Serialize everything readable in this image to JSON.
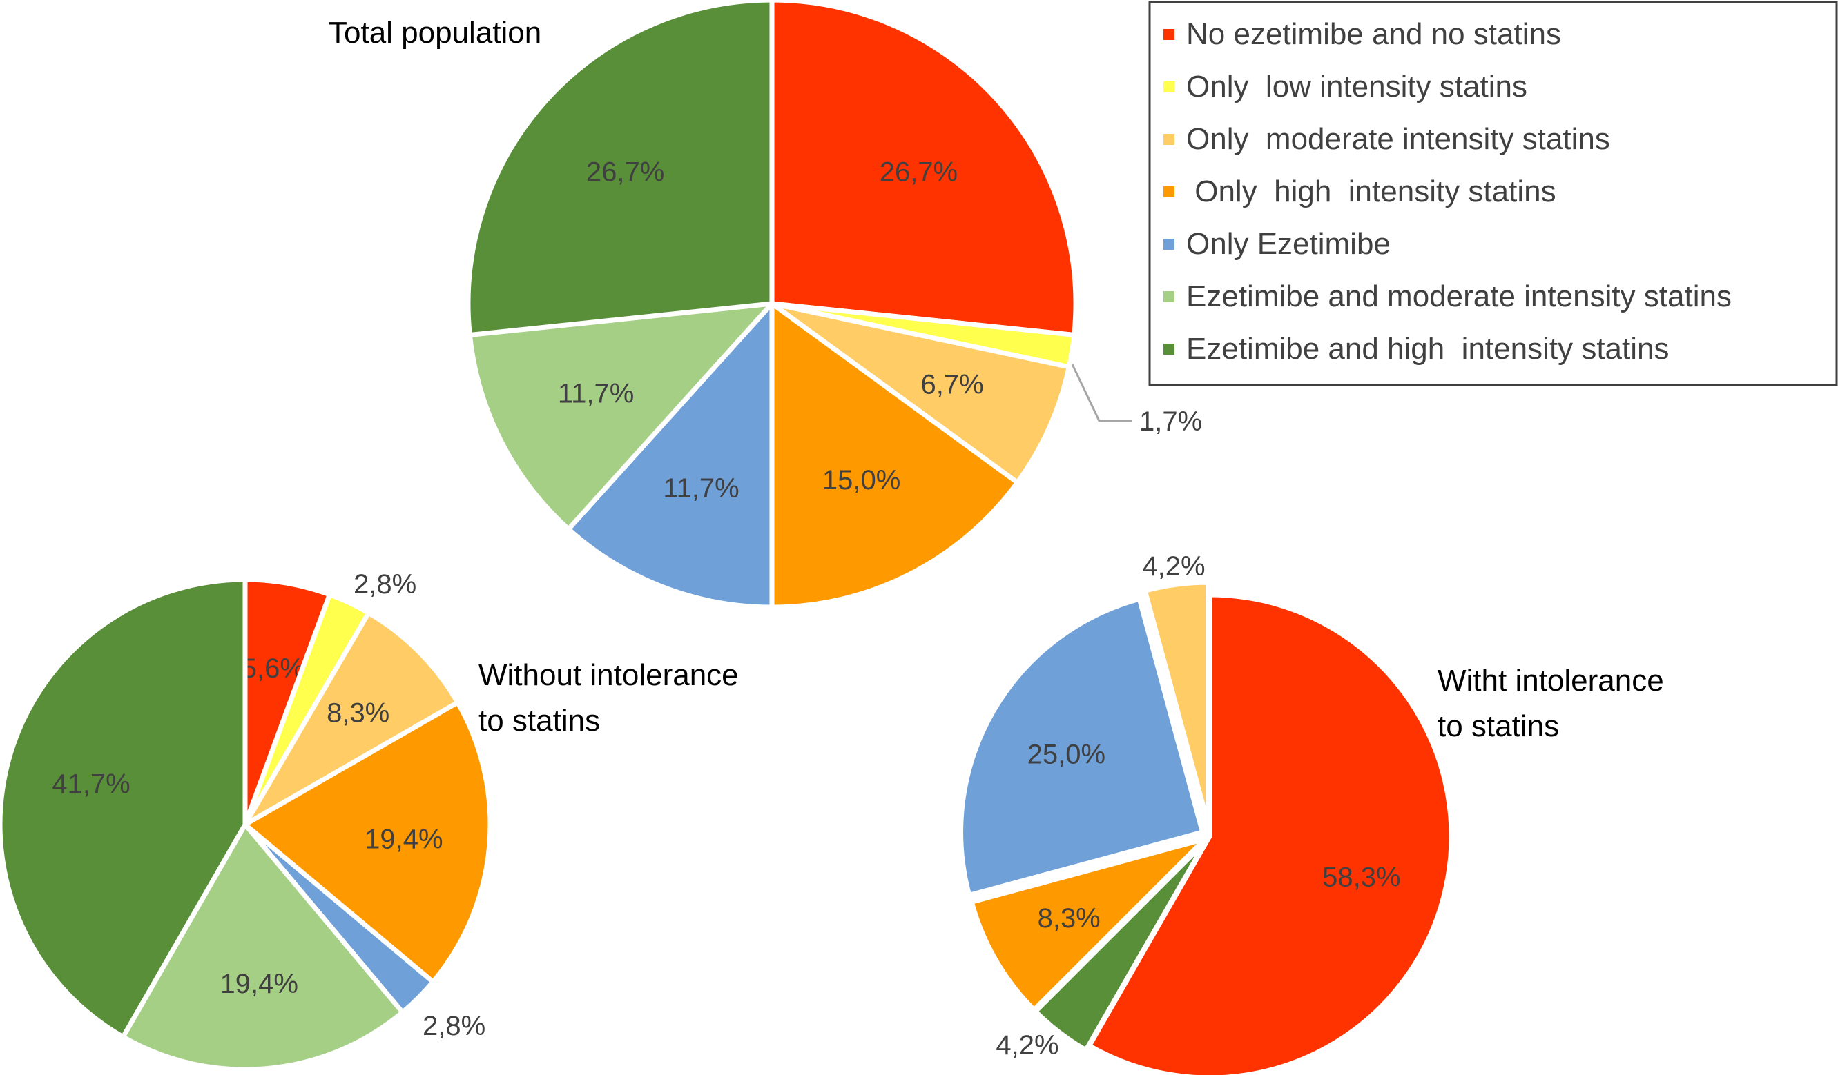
{
  "legend": {
    "position": "top-right",
    "items": [
      {
        "label": "No ezetimibe and no statins",
        "color": "#ff3300"
      },
      {
        "label": "Only  low intensity statins",
        "color": "#ffff4d"
      },
      {
        "label": "Only  moderate intensity statins",
        "color": "#ffcc66"
      },
      {
        "label": " Only  high  intensity statins",
        "color": "#ff9900"
      },
      {
        "label": "Only Ezetimibe",
        "color": "#6fa0d8"
      },
      {
        "label": "Ezetimibe and moderate intensity statins",
        "color": "#a6cf86"
      },
      {
        "label": "Ezetimibe and high  intensity statins",
        "color": "#5a8f3a"
      }
    ]
  },
  "chart_data": [
    {
      "type": "pie",
      "title": "Total population",
      "categories": [
        "No ezetimibe and no statins",
        "Only  low intensity statins",
        "Only  moderate intensity statins",
        " Only  high  intensity statins",
        "Only Ezetimibe",
        "Ezetimibe and moderate intensity statins",
        "Ezetimibe and high  intensity statins"
      ],
      "values": [
        26.7,
        1.7,
        6.7,
        15.0,
        11.7,
        11.7,
        26.7
      ],
      "labels": [
        "26,7%",
        "1,7%",
        "6,7%",
        "15,0%",
        "11,7%",
        "11,7%",
        "26,7%"
      ]
    },
    {
      "type": "pie",
      "title": "Without  intolerance to statins",
      "title_lines": [
        "Without  intolerance",
        "to statins"
      ],
      "categories": [
        "No ezetimibe and no statins",
        "Only  low intensity statins",
        "Only  moderate intensity statins",
        " Only  high  intensity statins",
        "Only Ezetimibe",
        "Ezetimibe and moderate intensity statins",
        "Ezetimibe and high  intensity statins"
      ],
      "values": [
        5.6,
        2.8,
        8.3,
        19.4,
        2.8,
        19.4,
        41.7
      ],
      "labels": [
        "5,6%",
        "2,8%",
        "8,3%",
        "19,4%",
        "2,8%",
        "19,4%",
        "41,7%"
      ]
    },
    {
      "type": "pie",
      "title": "Witht  intolerance to statins",
      "title_lines": [
        "Witht  intolerance",
        "to statins"
      ],
      "categories": [
        "No ezetimibe and no statins",
        "Ezetimibe and high  intensity statins",
        " Only  high  intensity statins",
        "Only Ezetimibe",
        "Only  moderate intensity statins"
      ],
      "values": [
        58.3,
        4.2,
        8.3,
        25.0,
        4.2
      ],
      "labels": [
        "58,3%",
        "4,2%",
        "8,3%",
        "25,0%",
        "4,2%"
      ]
    }
  ]
}
